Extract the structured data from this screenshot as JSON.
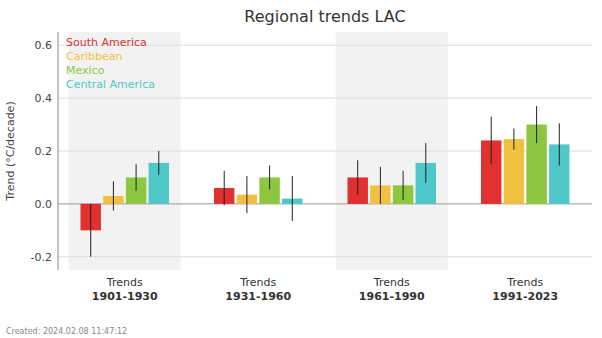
{
  "chart_data": {
    "type": "bar",
    "title": "Regional trends LAC",
    "ylabel": "Trend (°C/decade)",
    "footnote": "Created: 2024.02.08 11:47:12",
    "categories": [
      "Trends\n1901-1930",
      "Trends\n1931-1960",
      "Trends\n1961-1990",
      "Trends\n1991-2023"
    ],
    "series": [
      {
        "name": "South America",
        "color": "#e03030",
        "values": [
          -0.1,
          0.06,
          0.1,
          0.24
        ],
        "errors": [
          0.1,
          0.065,
          0.065,
          0.09
        ]
      },
      {
        "name": "Caribbean",
        "color": "#f0c040",
        "values": [
          0.03,
          0.035,
          0.07,
          0.245
        ],
        "errors": [
          0.055,
          0.07,
          0.07,
          0.04
        ]
      },
      {
        "name": "Mexico",
        "color": "#8dc63f",
        "values": [
          0.1,
          0.1,
          0.07,
          0.3
        ],
        "errors": [
          0.05,
          0.045,
          0.055,
          0.07
        ]
      },
      {
        "name": "Central America",
        "color": "#4ec8c8",
        "values": [
          0.155,
          0.02,
          0.155,
          0.225
        ],
        "errors": [
          0.045,
          0.085,
          0.075,
          0.08
        ]
      }
    ],
    "ylim": [
      -0.25,
      0.65
    ],
    "yticks": [
      -0.2,
      {
        "value": 0.0,
        "label": "0.0"
      },
      0.2,
      0.4,
      0.6
    ],
    "grid": true,
    "legend": "upper left"
  }
}
